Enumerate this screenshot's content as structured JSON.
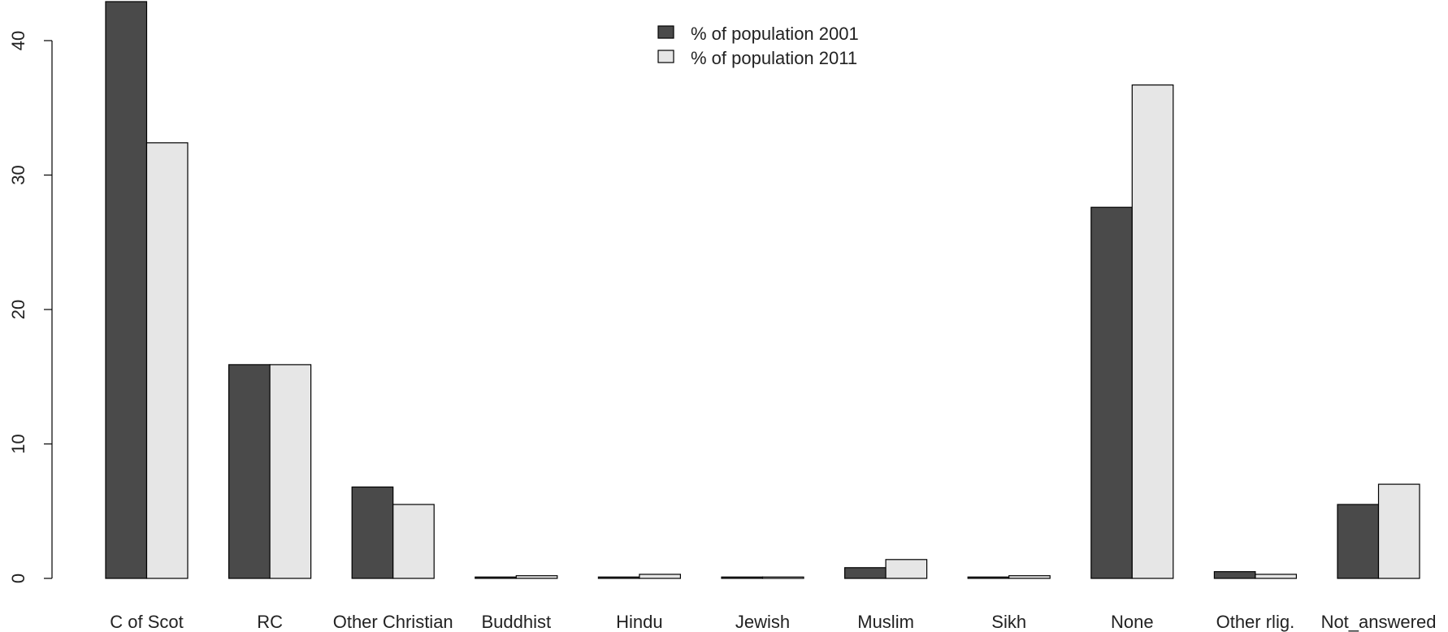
{
  "chart_data": {
    "type": "bar",
    "title": "",
    "xlabel": "",
    "ylabel": "",
    "ylim": [
      0,
      42.5
    ],
    "yticks": [
      0,
      10,
      20,
      30,
      40
    ],
    "legend_position": "top-center",
    "grid": false,
    "categories": [
      "C of Scot",
      "RC",
      "Other Christian",
      "Buddhist",
      "Hindu",
      "Jewish",
      "Muslim",
      "Sikh",
      "None",
      "Other rlig.",
      "Not_answered"
    ],
    "series": [
      {
        "name": "% of population 2001",
        "color": "#4a4a4a",
        "values": [
          42.9,
          15.9,
          6.8,
          0.1,
          0.1,
          0.1,
          0.8,
          0.1,
          27.6,
          0.5,
          5.5
        ]
      },
      {
        "name": "% of population 2011",
        "color": "#e6e6e6",
        "values": [
          32.4,
          15.9,
          5.5,
          0.2,
          0.3,
          0.1,
          1.4,
          0.2,
          36.7,
          0.3,
          7.0
        ]
      }
    ]
  }
}
